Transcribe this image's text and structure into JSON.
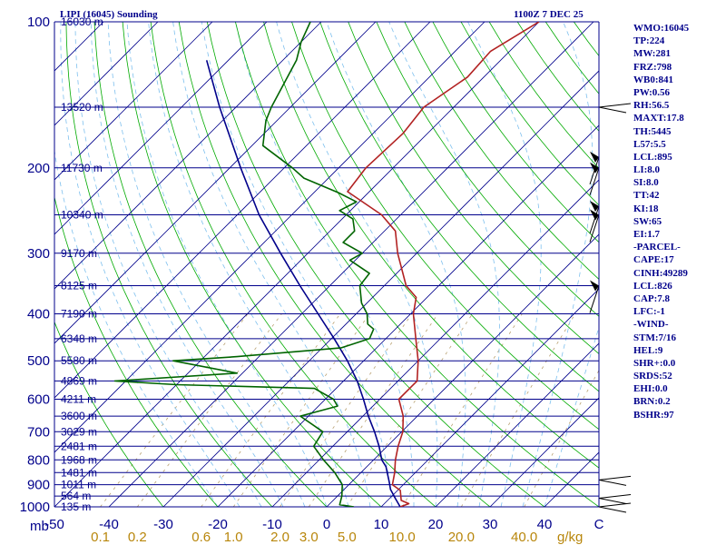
{
  "header": {
    "station": "LIPI (16045) Sounding",
    "time": "1100Z  7 DEC 25"
  },
  "indices": [
    "WMO:16045",
    "TP:224",
    "MW:281",
    "FRZ:798",
    "WB0:841",
    "PW:0.56",
    "RH:56.5",
    "MAXT:17.8",
    "TH:5445",
    "L57:5.5",
    "LCL:895",
    "LI:8.0",
    "SI:8.0",
    "TT:42",
    "KI:18",
    "SW:65",
    "EI:1.7",
    "-PARCEL-",
    "CAPE:17",
    "CINH:49289",
    "LCL:826",
    "CAP:7.8",
    "LFC:-1",
    "-WIND-",
    "STM:7/16",
    "HEL:9",
    "SHR+:0.0",
    "SRDS:52",
    "EHI:0.0",
    "BRN:0.2",
    "BSHR:97"
  ],
  "colors": {
    "isobar": "#00008b",
    "isotherm": "#00008b",
    "dry_adiabat": "#00aa00",
    "moist_adiabat": "#7ec0ee",
    "mixing_ratio": "#b8a070",
    "temperature": "#b22222",
    "dewpoint": "#006400",
    "parcel": "#00008b",
    "wind": "#000000"
  },
  "chart_data": {
    "type": "skew-t log-p sounding",
    "title": "LIPI (16045) Sounding",
    "pressure_unit_label": "mb",
    "mixing_ratio_unit_label": "g/kg",
    "y_axis": {
      "scale": "log",
      "range_hpa": [
        1000,
        100
      ],
      "tick_labels": [
        "100",
        "200",
        "300",
        "400",
        "500",
        "600",
        "700",
        "800",
        "900",
        "1000"
      ]
    },
    "x_axis": {
      "range_c": [
        -50,
        50
      ],
      "tick_labels": [
        "-50",
        "-40",
        "-30",
        "-20",
        "-10",
        "0",
        "10",
        "20",
        "30",
        "40",
        "C"
      ]
    },
    "mixing_ratio_labels": [
      "0.1",
      "0.2",
      "0.6",
      "1.0",
      "2.0",
      "3.0",
      "5.0",
      "10.0",
      "20.0",
      "40.0"
    ],
    "heights": [
      {
        "p": 1000,
        "label": "135 m"
      },
      {
        "p": 950,
        "label": "564 m"
      },
      {
        "p": 900,
        "label": "1011 m"
      },
      {
        "p": 850,
        "label": "1481 m"
      },
      {
        "p": 800,
        "label": "1968 m"
      },
      {
        "p": 750,
        "label": "2481 m"
      },
      {
        "p": 700,
        "label": "3029 m"
      },
      {
        "p": 650,
        "label": "3600 m"
      },
      {
        "p": 600,
        "label": "4211 m"
      },
      {
        "p": 550,
        "label": "4869 m"
      },
      {
        "p": 500,
        "label": "5580 m"
      },
      {
        "p": 450,
        "label": "6348 m"
      },
      {
        "p": 400,
        "label": "7190 m"
      },
      {
        "p": 350,
        "label": "8125 m"
      },
      {
        "p": 300,
        "label": "9170 m"
      },
      {
        "p": 250,
        "label": "10340 m"
      },
      {
        "p": 200,
        "label": "11730 m"
      },
      {
        "p": 150,
        "label": "13520 m"
      },
      {
        "p": 100,
        "label": "16030 m"
      }
    ],
    "temperature": [
      [
        1000,
        13.5
      ],
      [
        985,
        14.5
      ],
      [
        970,
        12.5
      ],
      [
        925,
        10.5
      ],
      [
        900,
        8.0
      ],
      [
        850,
        6.2
      ],
      [
        800,
        4.0
      ],
      [
        750,
        2.0
      ],
      [
        700,
        0.2
      ],
      [
        650,
        -2.6
      ],
      [
        600,
        -6.5
      ],
      [
        570,
        -6.5
      ],
      [
        550,
        -6.5
      ],
      [
        500,
        -10.0
      ],
      [
        450,
        -14.5
      ],
      [
        400,
        -19.5
      ],
      [
        370,
        -22.0
      ],
      [
        350,
        -26.0
      ],
      [
        300,
        -33.5
      ],
      [
        270,
        -38.0
      ],
      [
        250,
        -43.5
      ],
      [
        224,
        -54.0
      ],
      [
        200,
        -55.0
      ],
      [
        170,
        -54.5
      ],
      [
        150,
        -55.5
      ],
      [
        130,
        -53.0
      ],
      [
        115,
        -53.5
      ],
      [
        100,
        -50.0
      ]
    ],
    "dewpoint": [
      [
        1000,
        5.0
      ],
      [
        990,
        2.0
      ],
      [
        950,
        0.8
      ],
      [
        900,
        -1.2
      ],
      [
        850,
        -4.8
      ],
      [
        800,
        -9.2
      ],
      [
        750,
        -13.5
      ],
      [
        700,
        -14.5
      ],
      [
        650,
        -21.5
      ],
      [
        620,
        -16.5
      ],
      [
        600,
        -18.5
      ],
      [
        570,
        -24.0
      ],
      [
        560,
        -50.0
      ],
      [
        550,
        -62.0
      ],
      [
        530,
        -41.0
      ],
      [
        500,
        -55.0
      ],
      [
        490,
        -44.0
      ],
      [
        470,
        -26.5
      ],
      [
        450,
        -23.0
      ],
      [
        430,
        -24.0
      ],
      [
        420,
        -26.0
      ],
      [
        400,
        -28.0
      ],
      [
        380,
        -31.0
      ],
      [
        350,
        -34.5
      ],
      [
        330,
        -35.0
      ],
      [
        310,
        -41.0
      ],
      [
        300,
        -40.0
      ],
      [
        285,
        -45.5
      ],
      [
        270,
        -45.5
      ],
      [
        255,
        -48.0
      ],
      [
        245,
        -52.0
      ],
      [
        235,
        -50.5
      ],
      [
        225,
        -55.5
      ],
      [
        210,
        -64.5
      ],
      [
        200,
        -68.5
      ],
      [
        180,
        -78.0
      ],
      [
        160,
        -82.0
      ],
      [
        150,
        -83.5
      ],
      [
        120,
        -87.5
      ],
      [
        110,
        -90.0
      ],
      [
        100,
        -92.0
      ]
    ],
    "parcel": [
      [
        1000,
        13.5
      ],
      [
        960,
        11.0
      ],
      [
        920,
        8.5
      ],
      [
        890,
        7.0
      ],
      [
        826,
        3.5
      ],
      [
        800,
        1.5
      ],
      [
        750,
        -1.5
      ],
      [
        700,
        -5.0
      ],
      [
        650,
        -9.0
      ],
      [
        600,
        -13.0
      ],
      [
        550,
        -17.5
      ],
      [
        500,
        -23.0
      ],
      [
        450,
        -29.5
      ],
      [
        400,
        -37.0
      ],
      [
        350,
        -45.5
      ],
      [
        300,
        -55.0
      ],
      [
        250,
        -66.0
      ],
      [
        200,
        -78.0
      ],
      [
        150,
        -93.0
      ],
      [
        120,
        -104.0
      ]
    ]
  }
}
